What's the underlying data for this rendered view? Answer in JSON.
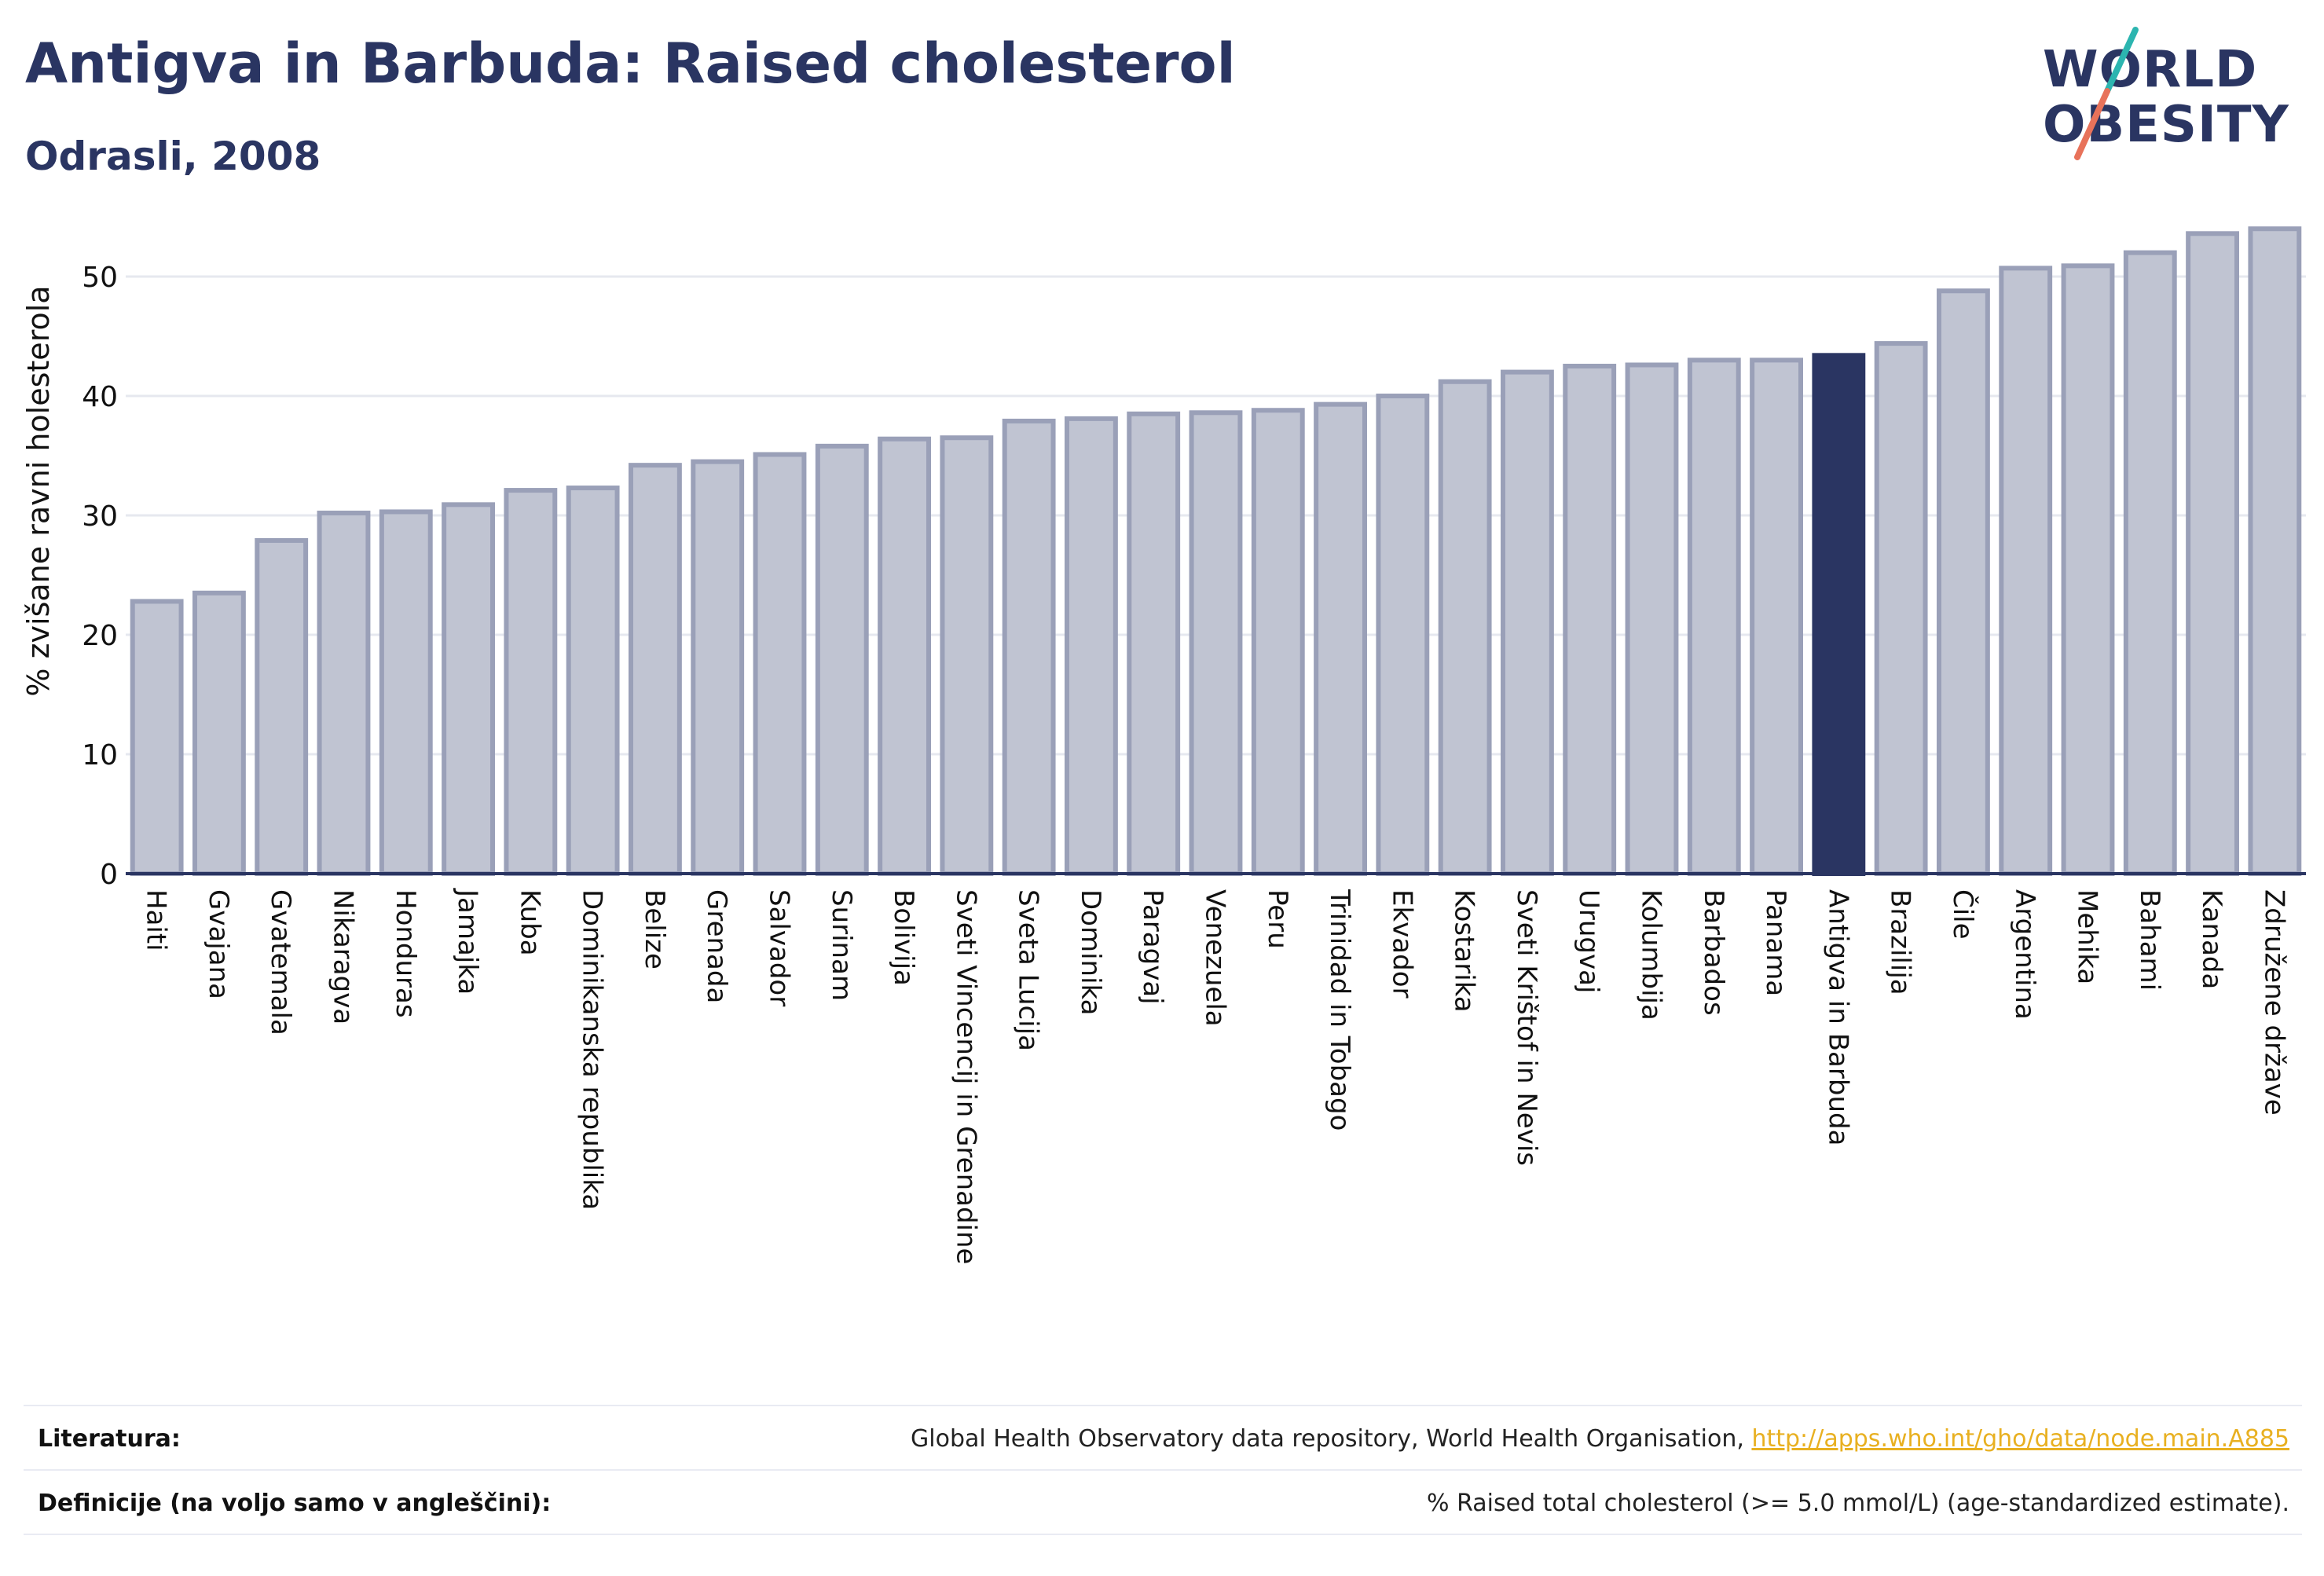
{
  "header": {
    "title": "Antigva in Barbuda: Raised cholesterol",
    "subtitle": "Odrasli, 2008"
  },
  "logo": {
    "line1": "WORLD",
    "line2": "OBESITY",
    "accent_colors": [
      "#2cb5b0",
      "#e8725a"
    ]
  },
  "chart_data": {
    "type": "bar",
    "ylabel": "% zvišane ravni holesterola",
    "ylim": [
      0,
      55
    ],
    "yticks": [
      0,
      10,
      20,
      30,
      40,
      50
    ],
    "grid": true,
    "highlight": "Antigva in Barbuda",
    "colors": {
      "bar_fill": "#c0c4d2",
      "bar_stroke": "#9aa0b8",
      "highlight_fill": "#2a3562",
      "axis": "#2a3562",
      "grid": "#e6e8ef"
    },
    "categories": [
      "Haiti",
      "Gvajana",
      "Gvatemala",
      "Nikaragva",
      "Honduras",
      "Jamajka",
      "Kuba",
      "Dominikanska republika",
      "Belize",
      "Grenada",
      "Salvador",
      "Surinam",
      "Bolivija",
      "Sveti Vincencij in Grenadine",
      "Sveta Lucija",
      "Dominika",
      "Paragvaj",
      "Venezuela",
      "Peru",
      "Trinidad in Tobago",
      "Ekvador",
      "Kostarika",
      "Sveti Krištof in Nevis",
      "Urugvaj",
      "Kolumbija",
      "Barbados",
      "Panama",
      "Antigva in Barbuda",
      "Brazilija",
      "Čile",
      "Argentina",
      "Mehika",
      "Bahami",
      "Kanada",
      "Združene države"
    ],
    "values": [
      22.8,
      23.5,
      27.9,
      30.2,
      30.3,
      30.9,
      32.1,
      32.3,
      34.2,
      34.5,
      35.1,
      35.8,
      36.4,
      36.5,
      37.9,
      38.1,
      38.5,
      38.6,
      38.8,
      39.3,
      40.0,
      41.2,
      42.0,
      42.5,
      42.6,
      43.0,
      43.0,
      43.4,
      44.4,
      48.8,
      50.7,
      50.9,
      52.0,
      53.6,
      54.0
    ]
  },
  "footer": {
    "literature_label": "Literatura:",
    "literature_text": "Global Health Observatory data repository, World Health Organisation, ",
    "literature_link": "http://apps.who.int/gho/data/node.main.A885",
    "definitions_label": "Definicije (na voljo samo v angleščini):",
    "definitions_text": "% Raised total cholesterol (>= 5.0 mmol/L) (age-standardized estimate)."
  }
}
